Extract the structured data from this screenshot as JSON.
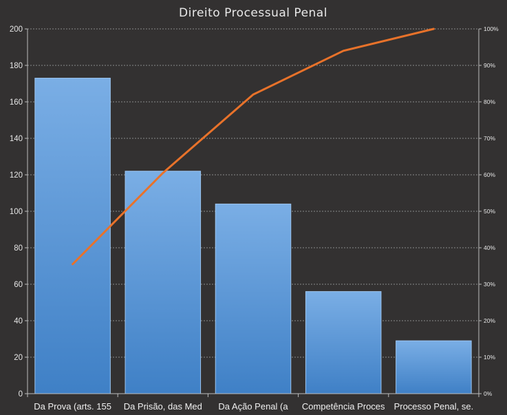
{
  "chart_data": {
    "type": "bar",
    "title": "Direito Processual Penal",
    "categories": [
      "Da Prova (arts. 155",
      "Da Prisão, das Med",
      "Da Ação Penal (a",
      "Competência Proces",
      "Processo Penal, se."
    ],
    "series": [
      {
        "type": "bar",
        "values": [
          173,
          122,
          104,
          56,
          29
        ]
      },
      {
        "type": "line",
        "axis": "secondary",
        "values": [
          35.5,
          60.5,
          82,
          94,
          100
        ]
      }
    ],
    "ylim": [
      0,
      200
    ],
    "yticks": [
      "0",
      "20",
      "40",
      "60",
      "80",
      "100",
      "120",
      "140",
      "160",
      "180",
      "200"
    ],
    "y2lim": [
      0,
      100
    ],
    "y2ticks": [
      "0%",
      "10%",
      "20%",
      "30%",
      "40%",
      "50%",
      "60%",
      "70%",
      "80%",
      "90%",
      "100%"
    ],
    "grid": true,
    "legend": "none",
    "colors": {
      "background": "#333131",
      "bar_top": "#7aaee5",
      "bar_bottom": "#3f80c6",
      "bar_edge": "#9cc4ee",
      "line": "#e8722a",
      "grid": "#8a8a8a",
      "axis": "#bdbdbd",
      "text": "#e6e6e6"
    }
  }
}
